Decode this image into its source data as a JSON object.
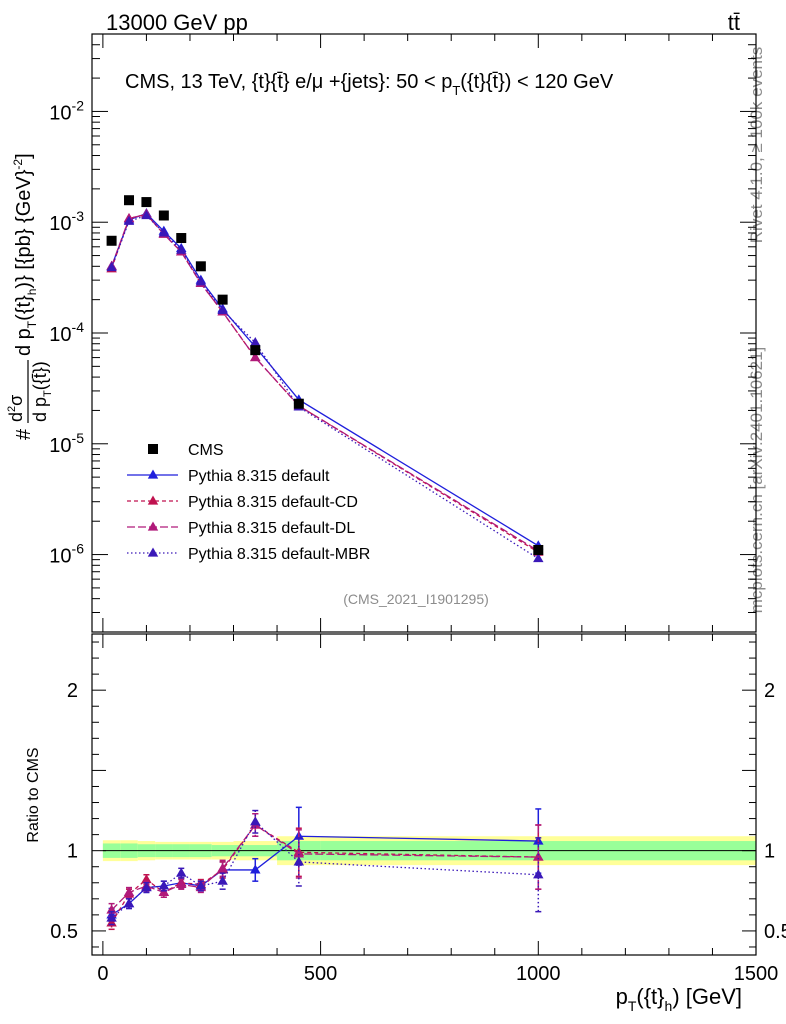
{
  "header": {
    "left": "13000 GeV pp",
    "right": "tt̄"
  },
  "side_labels": {
    "rivet": "Rivet 4.1.0, ≥ 100k events",
    "mcplots": "mcplots.cern.ch [arXiv:2401.10621]"
  },
  "chart_data": {
    "type": "scatter",
    "title": "CMS, 13 TeV, {t}{t̄} e/μ +{jets}: 50 <  p_T({t}{t̄}) < 120 GeV",
    "analysis_id": "(CMS_2021_I1901295)",
    "xlabel": "p_T({t}_h) [GeV]",
    "ylabel": "#d²σ/dp_T({t̄}) d p_T({t}_h) [{pb} {GeV}^-2]",
    "ratio_ylabel": "Ratio to CMS",
    "xlim": [
      -25,
      1500
    ],
    "ylim": [
      2e-07,
      0.05
    ],
    "ratio_ylim": [
      0.35,
      2.35
    ],
    "x_ticks": [
      0,
      500,
      1000,
      1500
    ],
    "y_tick_labels": [
      "10^-6",
      "10^-5",
      "10^-4",
      "10^-3",
      "10^-2"
    ],
    "ratio_ticks": [
      0.5,
      1,
      2
    ],
    "x": [
      20,
      60,
      100,
      140,
      180,
      225,
      275,
      350,
      450,
      1000
    ],
    "bin_edges": [
      0,
      40,
      80,
      120,
      160,
      200,
      250,
      300,
      400,
      500,
      1500
    ],
    "data": {
      "name": "CMS",
      "values": [
        0.00068,
        0.00158,
        0.00152,
        0.00115,
        0.00072,
        0.0004,
        0.0002,
        7e-05,
        2.3e-05,
        1.1e-06
      ],
      "band_inner": [
        0.045,
        0.045,
        0.04,
        0.04,
        0.04,
        0.04,
        0.035,
        0.035,
        0.06,
        0.06
      ],
      "band_outer": [
        0.065,
        0.065,
        0.06,
        0.055,
        0.055,
        0.055,
        0.055,
        0.06,
        0.09,
        0.09
      ]
    },
    "series": [
      {
        "name": "Pythia 8.315 default",
        "color": "#1f1fdc",
        "dash": "",
        "values": [
          0.0004,
          0.00105,
          0.0012,
          0.00083,
          0.00058,
          0.0003,
          0.000165,
          7.5e-05,
          2.5e-05,
          1.2e-06
        ],
        "ratio": [
          0.6,
          0.67,
          0.77,
          0.78,
          0.8,
          0.78,
          0.88,
          0.88,
          1.09,
          1.06
        ],
        "ratio_err": [
          0.04,
          0.03,
          0.03,
          0.03,
          0.03,
          0.03,
          0.05,
          0.07,
          0.18,
          0.2
        ]
      },
      {
        "name": "Pythia 8.315 default-CD",
        "color": "#c0124f",
        "dash": "4,3",
        "values": [
          0.00038,
          0.00108,
          0.00118,
          0.00078,
          0.00054,
          0.00028,
          0.000155,
          6e-05,
          2.2e-05,
          1.05e-06
        ],
        "ratio": [
          0.55,
          0.73,
          0.82,
          0.74,
          0.8,
          0.79,
          0.88,
          1.16,
          0.99,
          0.96
        ],
        "ratio_err": [
          0.04,
          0.03,
          0.03,
          0.03,
          0.03,
          0.03,
          0.05,
          0.07,
          0.15,
          0.2
        ]
      },
      {
        "name": "Pythia 8.315 default-DL",
        "color": "#b01a7a",
        "dash": "8,3",
        "values": [
          0.0004,
          0.00108,
          0.00118,
          0.00078,
          0.00054,
          0.00028,
          0.000155,
          6e-05,
          2.2e-05,
          1.08e-06
        ],
        "ratio": [
          0.63,
          0.74,
          0.78,
          0.74,
          0.79,
          0.77,
          0.89,
          1.16,
          0.98,
          0.96
        ],
        "ratio_err": [
          0.04,
          0.03,
          0.03,
          0.03,
          0.03,
          0.03,
          0.05,
          0.07,
          0.15,
          0.2
        ]
      },
      {
        "name": "Pythia 8.315 default-MBR",
        "color": "#3a18b8",
        "dash": "1.5,2.5",
        "values": [
          0.00039,
          0.00102,
          0.00115,
          0.0008,
          0.00056,
          0.00029,
          0.00016,
          8.2e-05,
          2.15e-05,
          9.2e-07
        ],
        "ratio": [
          0.58,
          0.67,
          0.77,
          0.78,
          0.86,
          0.78,
          0.81,
          1.18,
          0.93,
          0.85
        ],
        "ratio_err": [
          0.04,
          0.03,
          0.03,
          0.03,
          0.03,
          0.03,
          0.05,
          0.07,
          0.15,
          0.23
        ]
      }
    ]
  }
}
